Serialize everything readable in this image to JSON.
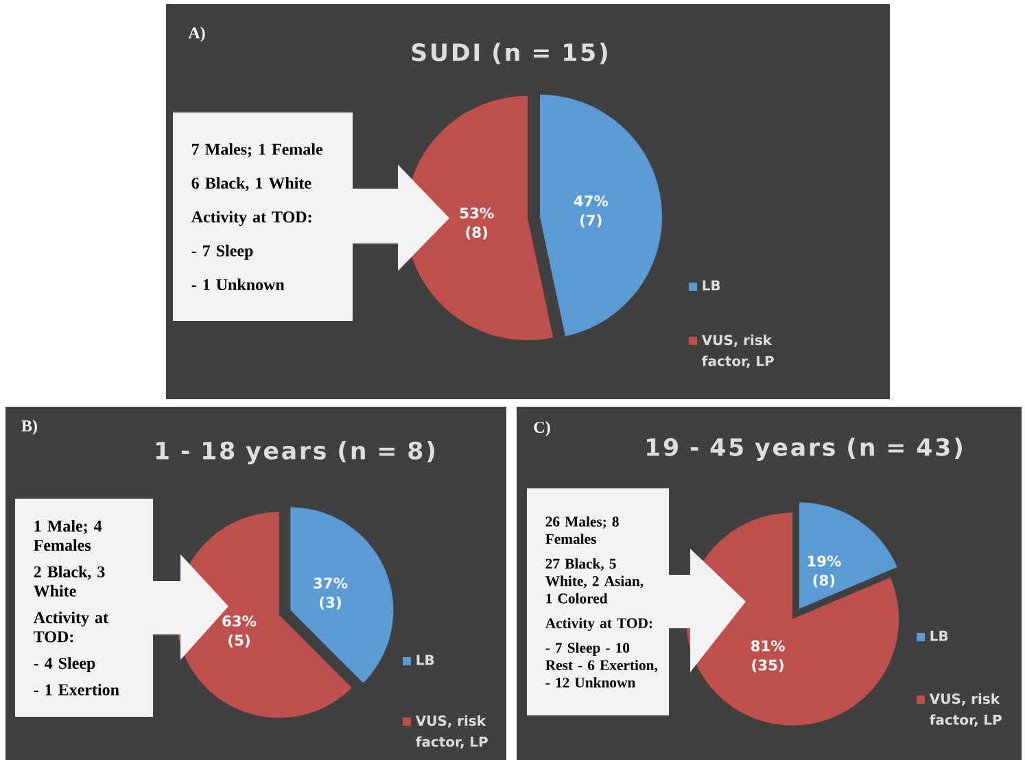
{
  "chart_data": [
    {
      "type": "pie",
      "title": "SUDI (n = 15)",
      "categories": [
        "LB",
        "VUS, risk factor, LP"
      ],
      "values": [
        7,
        8
      ],
      "value_labels": [
        "47% (7)",
        "53% (8)"
      ],
      "colors": [
        "#5b9bd5",
        "#c0504d"
      ],
      "legend": "right",
      "annotations": [
        "A)",
        "7 Males; 1 Female",
        "6 Black, 1 White",
        "Activity at TOD:",
        "-  7 Sleep",
        "-  1 Unknown"
      ]
    },
    {
      "type": "pie",
      "title": "1 - 18 years (n = 8)",
      "categories": [
        "LB",
        "VUS, risk factor, LP"
      ],
      "values": [
        3,
        5
      ],
      "value_labels": [
        "37% (3)",
        "63% (5)"
      ],
      "colors": [
        "#5b9bd5",
        "#c0504d"
      ],
      "legend": "right",
      "annotations": [
        "B)",
        "1 Male; 4 Females",
        "2 Black, 3 White",
        "Activity at TOD:",
        "-  4 Sleep",
        "-  1 Exertion"
      ]
    },
    {
      "type": "pie",
      "title": "19 - 45 years (n = 43)",
      "categories": [
        "LB",
        "VUS, risk factor, LP"
      ],
      "values": [
        8,
        35
      ],
      "value_labels": [
        "19% (8)",
        "81% (35)"
      ],
      "colors": [
        "#5b9bd5",
        "#c0504d"
      ],
      "legend": "right",
      "annotations": [
        "C)",
        "26 Males; 8 Females",
        "27 Black, 5 White, 2 Asian, 1 Colored",
        "Activity at TOD:",
        "- 7 Sleep - 10 Rest - 6 Exertion, - 12 Unknown"
      ]
    }
  ]
}
